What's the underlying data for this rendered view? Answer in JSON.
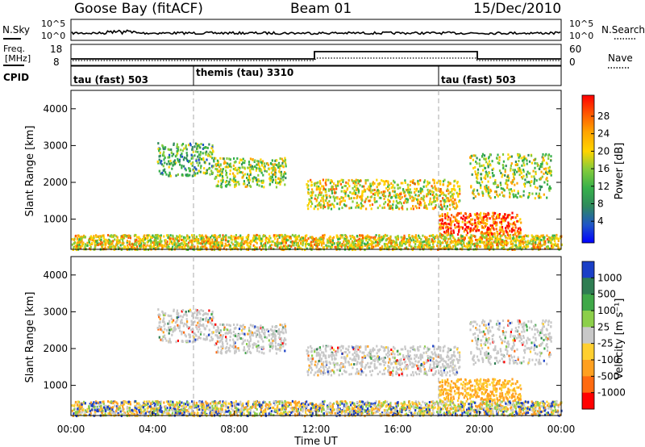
{
  "header": {
    "station": "Goose Bay (fitACF)",
    "beam": "Beam 01",
    "date": "15/Dec/2010"
  },
  "noise_panel": {
    "left_label": "N.Sky",
    "right_label": "N.Search",
    "left_ticks": [
      "10^5",
      "10^0"
    ],
    "right_ticks": [
      "10^5",
      "10^0"
    ]
  },
  "freq_panel": {
    "left_label_line1": "Freq.",
    "left_label_line2": "[MHz]",
    "right_label": "Nave",
    "left_ticks": [
      "18",
      "8"
    ],
    "right_ticks": [
      "60",
      "0"
    ]
  },
  "cpid_panel": {
    "label": "CPID",
    "segments": [
      {
        "text": "tau (fast) 503",
        "start_h": 0
      },
      {
        "text": "themis (tau) 3310",
        "start_h": 6
      },
      {
        "text": "tau (fast) 503",
        "start_h": 18
      }
    ]
  },
  "chart_data": [
    {
      "type": "heatmap",
      "name": "power",
      "ylabel": "Slant Range [km]",
      "yticks": [
        1000,
        2000,
        3000,
        4000
      ],
      "ylim": [
        180,
        4500
      ],
      "xlim_hours": [
        0,
        24
      ],
      "colorbar_label": "Power [dB]",
      "colorbar_ticks": [
        "28",
        "24",
        "20",
        "16",
        "12",
        "8",
        "4"
      ],
      "colors": [
        "#0000ff",
        "#1f55c8",
        "#2f8a5c",
        "#36b04a",
        "#86cc3a",
        "#ffd400",
        "#ffa500",
        "#ff5a00",
        "#ff0000"
      ],
      "echo_bands": [
        {
          "t0": 4.2,
          "t1": 7.0,
          "r0": 2200,
          "r1": 3100,
          "level": 3
        },
        {
          "t0": 7.0,
          "t1": 10.5,
          "r0": 1900,
          "r1": 2700,
          "level": 4
        },
        {
          "t0": 11.5,
          "t1": 19.0,
          "r0": 1300,
          "r1": 2100,
          "level": 5
        },
        {
          "t0": 18.0,
          "t1": 22.0,
          "r0": 600,
          "r1": 1200,
          "level": 7
        },
        {
          "t0": 19.5,
          "t1": 23.5,
          "r0": 1600,
          "r1": 2800,
          "level": 4
        },
        {
          "t0": 0.0,
          "t1": 24.0,
          "r0": 200,
          "r1": 600,
          "level": 5
        }
      ]
    },
    {
      "type": "heatmap",
      "name": "velocity",
      "ylabel": "Slant Range [km]",
      "xlabel": "Time UT",
      "yticks": [
        1000,
        2000,
        3000,
        4000
      ],
      "ylim": [
        180,
        4500
      ],
      "xlim_hours": [
        0,
        24
      ],
      "xticks": [
        "00:00",
        "04:00",
        "08:00",
        "12:00",
        "16:00",
        "20:00",
        "00:00"
      ],
      "colorbar_label": "Velocity [m s⁻¹]",
      "colorbar_ticks": [
        "1000",
        "500",
        "100",
        "25",
        "-25",
        "-100",
        "-500",
        "-1000"
      ],
      "colors": [
        "#1a3fc6",
        "#2e7d52",
        "#3fa848",
        "#8ccf4a",
        "#c8c8c8",
        "#ffcf30",
        "#ffa020",
        "#ff6a10",
        "#ff0000"
      ]
    }
  ]
}
